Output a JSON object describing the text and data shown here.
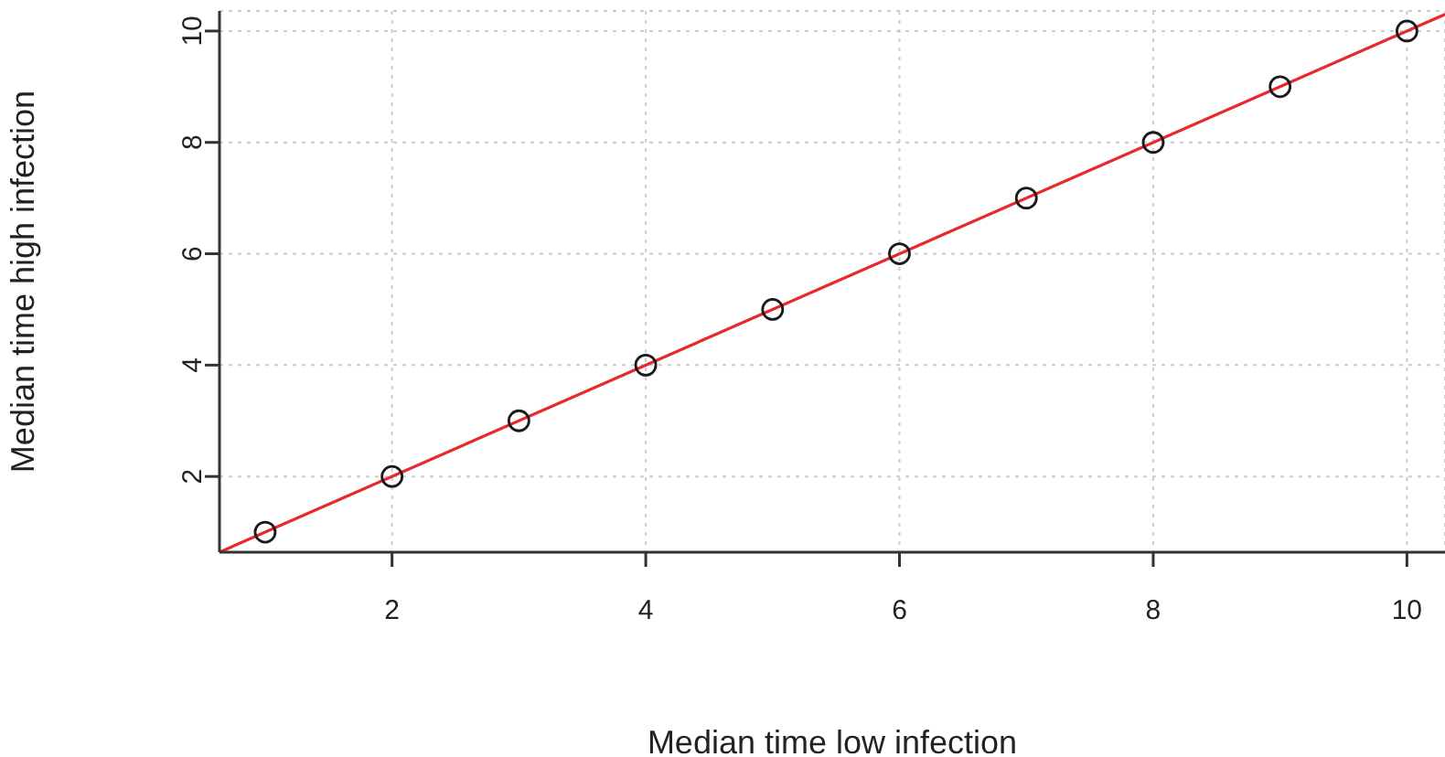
{
  "chart_data": {
    "type": "scatter",
    "xlabel": "Median time low infection",
    "ylabel": "Median time high infection",
    "x": [
      1,
      2,
      3,
      4,
      5,
      6,
      7,
      8,
      9,
      10
    ],
    "series": [
      {
        "color": "#1a1a1a",
        "values": [
          1,
          2,
          3,
          4,
          5,
          6,
          7,
          8,
          9,
          10
        ],
        "marker": "circle"
      },
      {
        "type": "line",
        "color": "#e8282b",
        "x": [
          0.64,
          10.3
        ],
        "values": [
          0.64,
          10.3
        ],
        "marker": "none",
        "line_style": "solid"
      }
    ],
    "xlim": [
      0.64,
      10.3
    ],
    "ylim": [
      0.64,
      10.36
    ],
    "xticks": [
      2,
      4,
      6,
      8,
      10
    ],
    "yticks": [
      2,
      4,
      6,
      8,
      10
    ],
    "grid": true
  }
}
